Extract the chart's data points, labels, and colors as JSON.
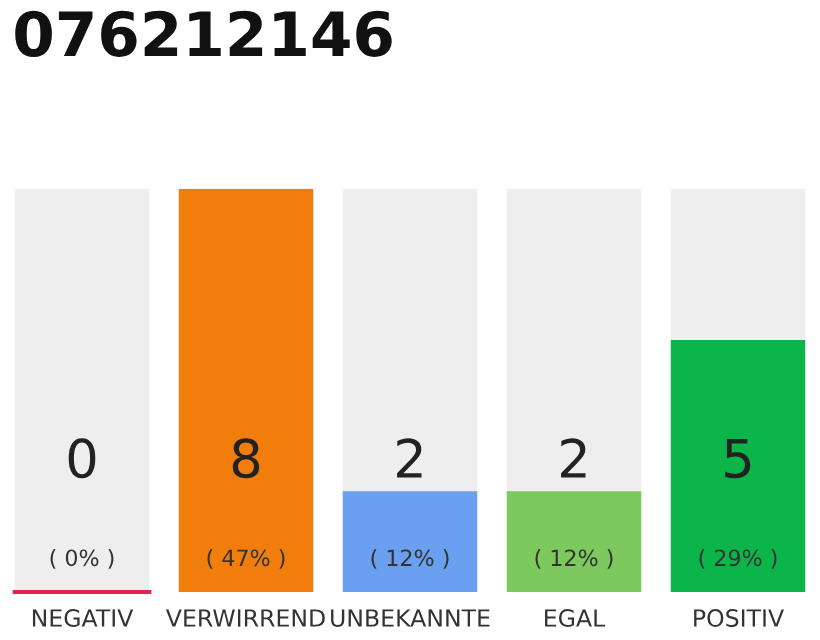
{
  "chart_data": {
    "type": "bar",
    "title": "076212146",
    "categories": [
      "NEGATIV",
      "VERWIRREND",
      "UNBEKANNTE",
      "EGAL",
      "POSITIV"
    ],
    "values": [
      0,
      8,
      2,
      2,
      5
    ],
    "colors": [
      "#e0244c",
      "#f07d0c",
      "#6aa0ef",
      "#7dc95e",
      "#0bb54a"
    ],
    "data_labels": true,
    "annotations": [
      "( 0% )",
      "( 47% )",
      "( 12% )",
      "( 12% )",
      "( 29% )"
    ],
    "bands": [
      {
        "axis": "y",
        "from": 0,
        "to": 8,
        "color": "#eeeeee"
      }
    ],
    "grid": false,
    "legend": false
  }
}
